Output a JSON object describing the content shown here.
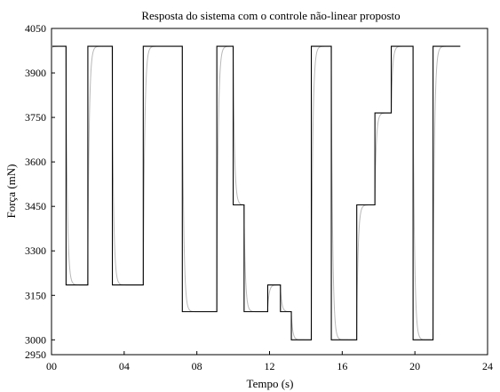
{
  "chart_data": {
    "type": "line",
    "title": "Resposta do sistema com o controle não-linear proposto",
    "xlabel": "Tempo (s)",
    "ylabel": "Força (mN)",
    "xlim": [
      0,
      24
    ],
    "ylim": [
      2950,
      4050
    ],
    "x_ticks": [
      0,
      4,
      8,
      12,
      16,
      20,
      24
    ],
    "x_tick_labels": [
      "00",
      "04",
      "08",
      "12",
      "16",
      "20",
      "24"
    ],
    "y_ticks": [
      2950,
      3000,
      3150,
      3300,
      3450,
      3600,
      3750,
      3900,
      4050
    ],
    "y_tick_labels": [
      "2950",
      "3000",
      "3150",
      "3300",
      "3450",
      "3600",
      "3750",
      "3900",
      "4050"
    ],
    "grid": false,
    "series": [
      {
        "color": "#000000",
        "shape": "step",
        "points": [
          [
            0.05,
            3990
          ],
          [
            0.8,
            3990
          ],
          [
            0.8,
            3185
          ],
          [
            2.0,
            3185
          ],
          [
            2.0,
            3990
          ],
          [
            3.35,
            3990
          ],
          [
            3.35,
            3185
          ],
          [
            5.05,
            3185
          ],
          [
            5.05,
            3990
          ],
          [
            7.2,
            3990
          ],
          [
            7.2,
            3095
          ],
          [
            9.1,
            3095
          ],
          [
            9.1,
            3990
          ],
          [
            10.0,
            3990
          ],
          [
            10.0,
            3455
          ],
          [
            10.6,
            3455
          ],
          [
            10.6,
            3095
          ],
          [
            11.9,
            3095
          ],
          [
            11.9,
            3185
          ],
          [
            12.6,
            3185
          ],
          [
            12.6,
            3095
          ],
          [
            13.2,
            3095
          ],
          [
            13.2,
            3000
          ],
          [
            14.3,
            3000
          ],
          [
            14.3,
            3990
          ],
          [
            15.4,
            3990
          ],
          [
            15.4,
            3000
          ],
          [
            16.8,
            3000
          ],
          [
            16.8,
            3455
          ],
          [
            17.8,
            3455
          ],
          [
            17.8,
            3765
          ],
          [
            18.7,
            3765
          ],
          [
            18.7,
            3990
          ],
          [
            19.9,
            3990
          ],
          [
            19.9,
            3000
          ],
          [
            21.0,
            3000
          ],
          [
            21.0,
            3990
          ],
          [
            22.5,
            3990
          ]
        ]
      },
      {
        "color": "#b8b8b8",
        "shape": "first-order-response",
        "initial": 3985,
        "time_constant_s": 0.08,
        "x_end": 22.5,
        "setpoint_changes": [
          [
            0.8,
            3185
          ],
          [
            2.0,
            3990
          ],
          [
            3.35,
            3185
          ],
          [
            5.05,
            3990
          ],
          [
            7.2,
            3095
          ],
          [
            9.1,
            3990
          ],
          [
            10.0,
            3455
          ],
          [
            10.6,
            3095
          ],
          [
            11.9,
            3185
          ],
          [
            12.6,
            3095
          ],
          [
            13.2,
            3000
          ],
          [
            14.3,
            3990
          ],
          [
            15.4,
            3000
          ],
          [
            16.8,
            3455
          ],
          [
            17.8,
            3765
          ],
          [
            18.7,
            3990
          ],
          [
            19.9,
            3000
          ],
          [
            21.0,
            3990
          ]
        ]
      }
    ]
  }
}
